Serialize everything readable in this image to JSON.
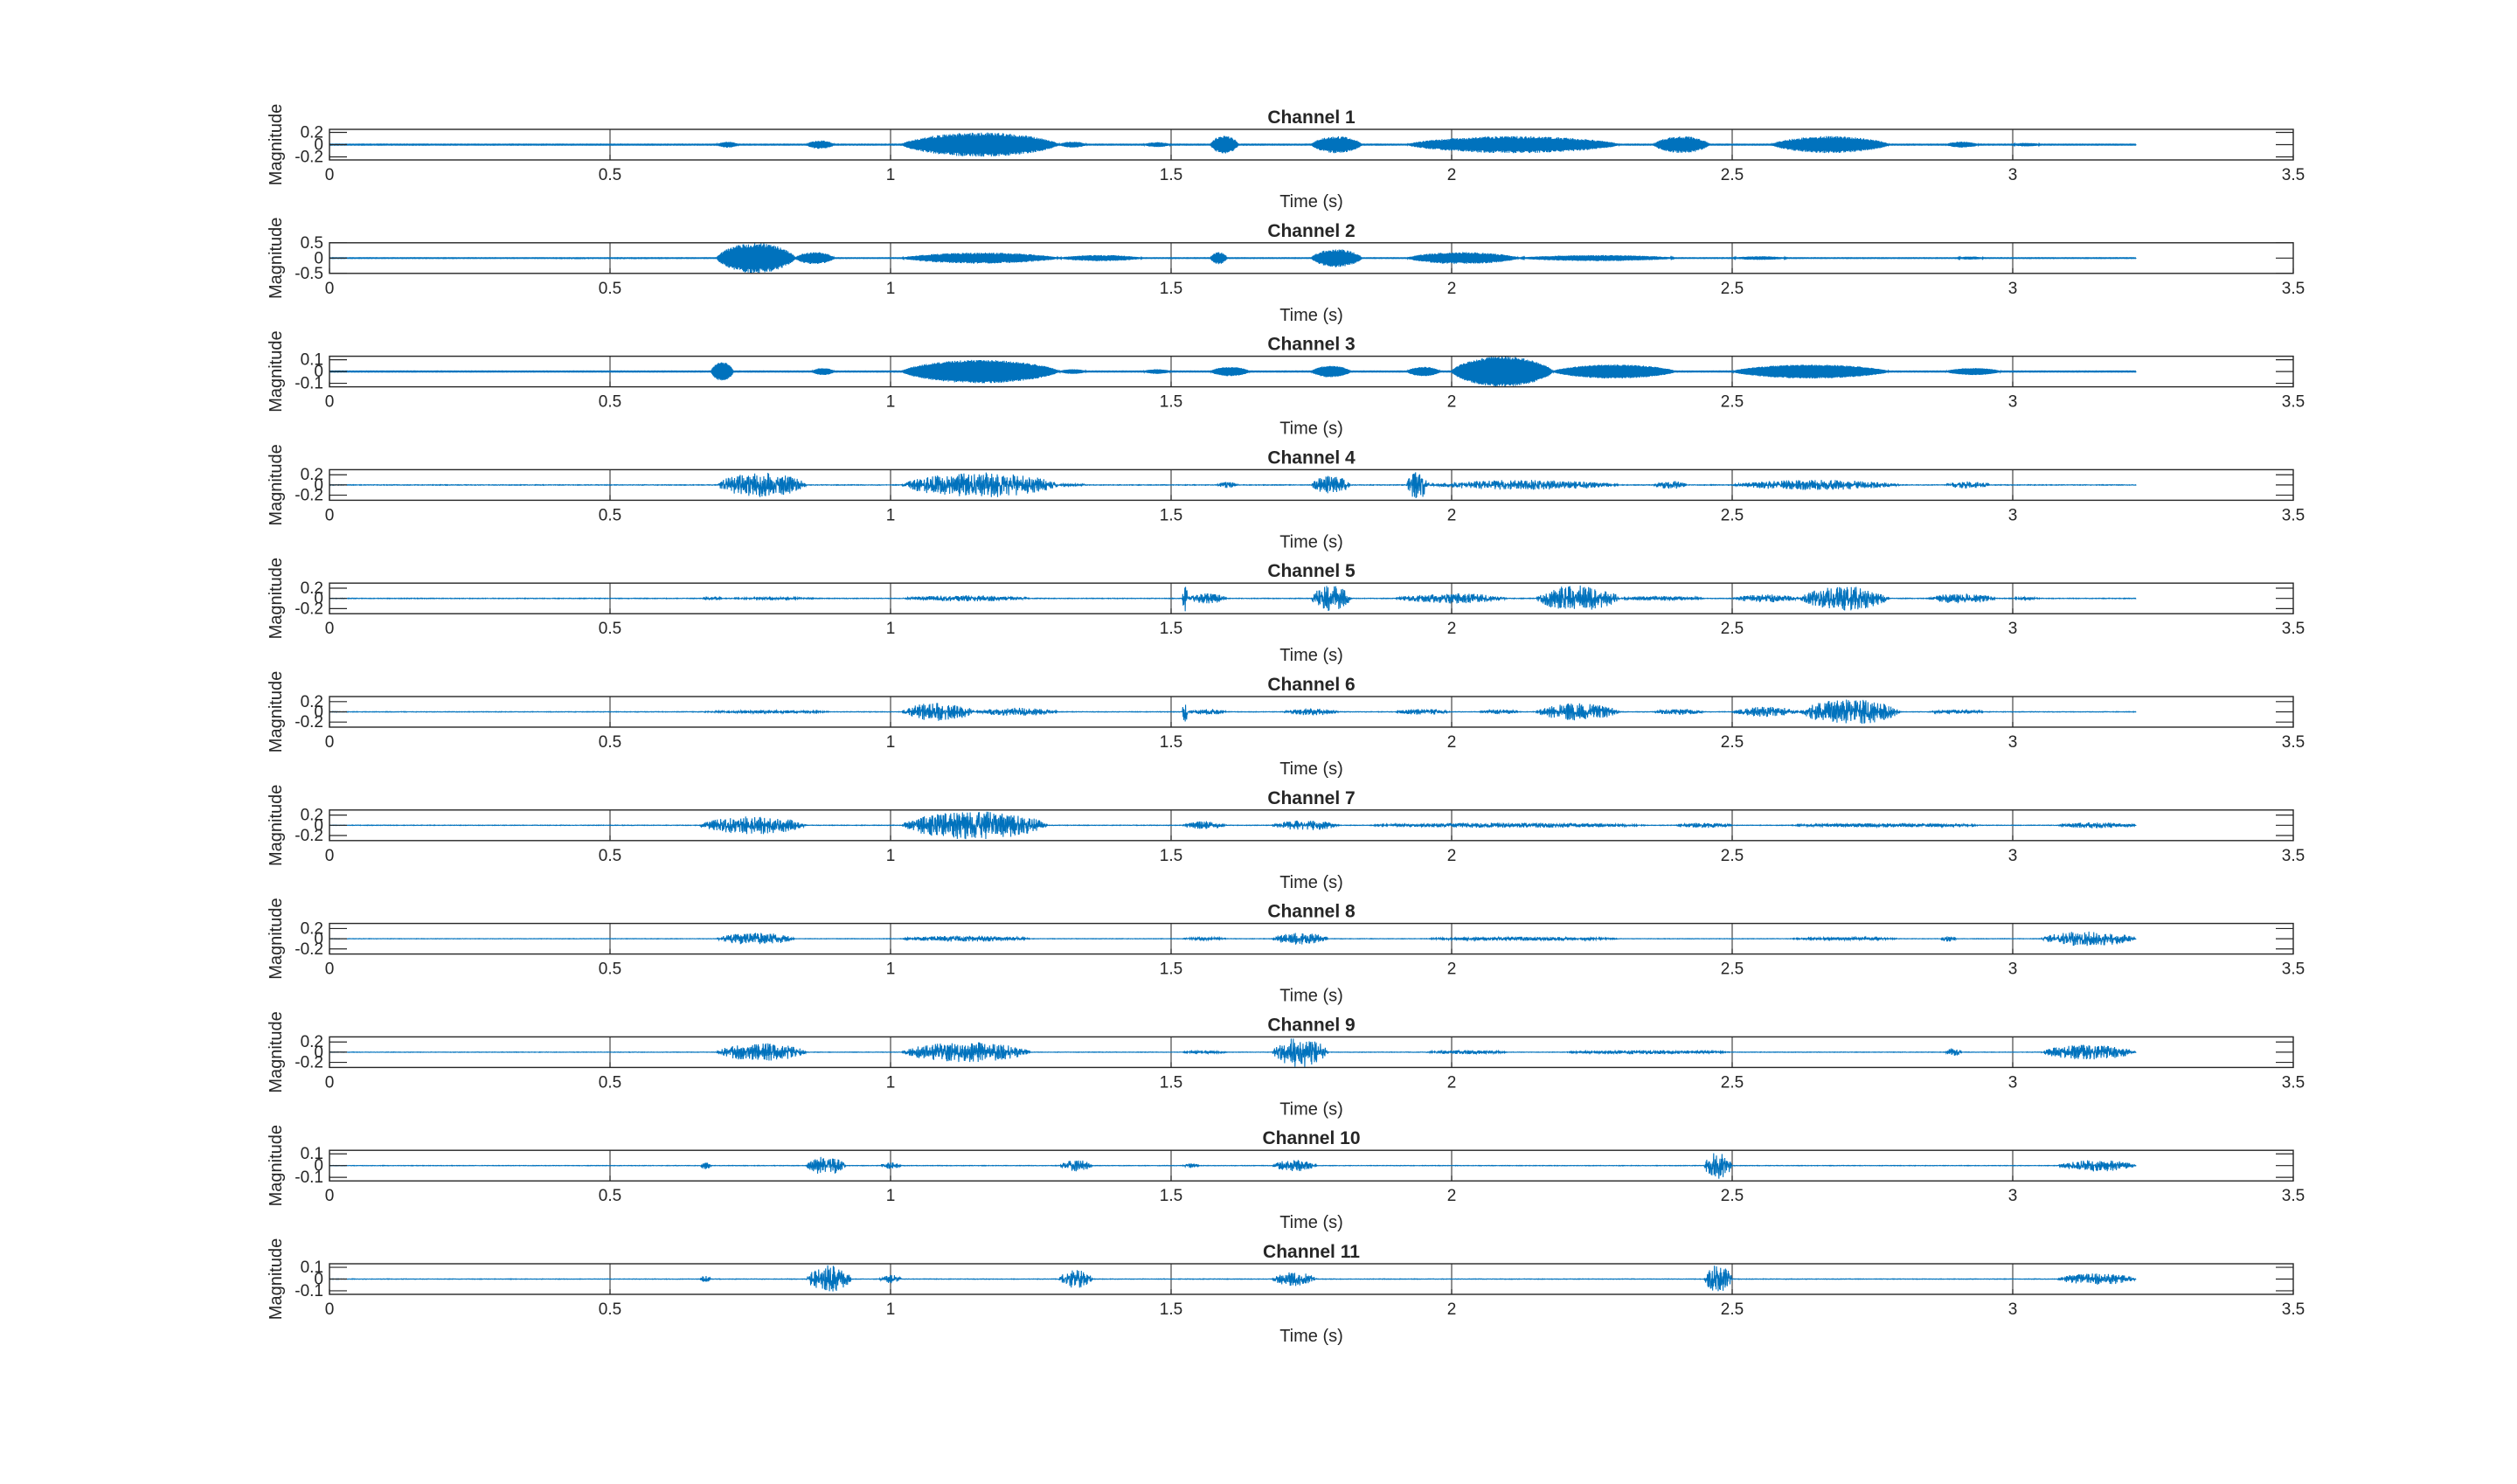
{
  "figure": {
    "background": "#ffffff",
    "trace_color": "#0072BD",
    "axis_color": "#262626",
    "grid_color": "#262626"
  },
  "chart_data": [
    {
      "type": "line",
      "title": "Channel 1",
      "xlabel": "Time (s)",
      "ylabel": "Magnitude",
      "xlim": [
        0,
        3.5
      ],
      "ylim": [
        -0.25,
        0.25
      ],
      "xticks": [
        "0",
        "0.5",
        "1",
        "1.5",
        "2",
        "2.5",
        "3",
        "3.5"
      ],
      "yticks": [
        {
          "v": 0.2,
          "t": "0.2"
        },
        {
          "v": 0,
          "t": "0"
        },
        {
          "v": -0.2,
          "t": "-0.2"
        }
      ],
      "grid": "x-major",
      "legend": "none",
      "duration": 3.22,
      "baseline": 0.006,
      "tone": 0.85,
      "bursts": [
        [
          0.69,
          0.73,
          0.05
        ],
        [
          0.85,
          0.9,
          0.07
        ],
        [
          1.02,
          1.3,
          0.2
        ],
        [
          1.3,
          1.35,
          0.05
        ],
        [
          1.45,
          1.5,
          0.04
        ],
        [
          1.57,
          1.62,
          0.15
        ],
        [
          1.75,
          1.84,
          0.14
        ],
        [
          1.92,
          2.3,
          0.14
        ],
        [
          2.36,
          2.46,
          0.14
        ],
        [
          2.57,
          2.78,
          0.14
        ],
        [
          2.88,
          2.94,
          0.05
        ],
        [
          3.0,
          3.05,
          0.03
        ]
      ]
    },
    {
      "type": "line",
      "title": "Channel 2",
      "xlabel": "Time (s)",
      "ylabel": "Magnitude",
      "xlim": [
        0,
        3.5
      ],
      "ylim": [
        -0.5,
        0.5
      ],
      "xticks": [
        "0",
        "0.5",
        "1",
        "1.5",
        "2",
        "2.5",
        "3",
        "3.5"
      ],
      "yticks": [
        {
          "v": 0.5,
          "t": "0.5"
        },
        {
          "v": 0,
          "t": "0"
        },
        {
          "v": -0.5,
          "t": "-0.5"
        }
      ],
      "grid": "x-major",
      "legend": "none",
      "duration": 3.22,
      "baseline": 0.01,
      "tone": 0.85,
      "bursts": [
        [
          0.69,
          0.83,
          0.5
        ],
        [
          0.83,
          0.9,
          0.2
        ],
        [
          1.02,
          1.3,
          0.18
        ],
        [
          1.3,
          1.45,
          0.1
        ],
        [
          1.57,
          1.6,
          0.2
        ],
        [
          1.75,
          1.84,
          0.3
        ],
        [
          1.92,
          2.12,
          0.2
        ],
        [
          2.12,
          2.4,
          0.1
        ],
        [
          2.5,
          2.6,
          0.06
        ],
        [
          2.9,
          2.95,
          0.05
        ]
      ]
    },
    {
      "type": "line",
      "title": "Channel 3",
      "xlabel": "Time (s)",
      "ylabel": "Magnitude",
      "xlim": [
        0,
        3.5
      ],
      "ylim": [
        -0.13,
        0.13
      ],
      "xticks": [
        "0",
        "0.5",
        "1",
        "1.5",
        "2",
        "2.5",
        "3",
        "3.5"
      ],
      "yticks": [
        {
          "v": 0.1,
          "t": "0.1"
        },
        {
          "v": 0,
          "t": "0"
        },
        {
          "v": -0.1,
          "t": "-0.1"
        }
      ],
      "grid": "x-major",
      "legend": "none",
      "duration": 3.22,
      "baseline": 0.003,
      "tone": 0.9,
      "bursts": [
        [
          0.68,
          0.72,
          0.08
        ],
        [
          0.86,
          0.9,
          0.03
        ],
        [
          1.02,
          1.3,
          0.1
        ],
        [
          1.3,
          1.35,
          0.02
        ],
        [
          1.45,
          1.5,
          0.02
        ],
        [
          1.57,
          1.64,
          0.04
        ],
        [
          1.75,
          1.82,
          0.05
        ],
        [
          1.92,
          1.98,
          0.04
        ],
        [
          2.0,
          2.18,
          0.13
        ],
        [
          2.18,
          2.4,
          0.06
        ],
        [
          2.5,
          2.78,
          0.06
        ],
        [
          2.88,
          2.98,
          0.03
        ]
      ]
    },
    {
      "type": "line",
      "title": "Channel 4",
      "xlabel": "Time (s)",
      "ylabel": "Magnitude",
      "xlim": [
        0,
        3.5
      ],
      "ylim": [
        -0.3,
        0.3
      ],
      "xticks": [
        "0",
        "0.5",
        "1",
        "1.5",
        "2",
        "2.5",
        "3",
        "3.5"
      ],
      "yticks": [
        {
          "v": 0.2,
          "t": "0.2"
        },
        {
          "v": 0,
          "t": "0"
        },
        {
          "v": -0.2,
          "t": "-0.2"
        }
      ],
      "grid": "x-major",
      "legend": "none",
      "duration": 3.22,
      "baseline": 0.006,
      "tone": 0.4,
      "bursts": [
        [
          0.69,
          0.85,
          0.25
        ],
        [
          1.02,
          1.3,
          0.25
        ],
        [
          1.3,
          1.35,
          0.03
        ],
        [
          1.58,
          1.62,
          0.06
        ],
        [
          1.75,
          1.82,
          0.18
        ],
        [
          1.92,
          1.96,
          0.3
        ],
        [
          1.96,
          2.3,
          0.1
        ],
        [
          2.36,
          2.42,
          0.08
        ],
        [
          2.5,
          2.8,
          0.1
        ],
        [
          2.88,
          2.96,
          0.07
        ]
      ]
    },
    {
      "type": "line",
      "title": "Channel 5",
      "xlabel": "Time (s)",
      "ylabel": "Magnitude",
      "xlim": [
        0,
        3.5
      ],
      "ylim": [
        -0.3,
        0.3
      ],
      "xticks": [
        "0",
        "0.5",
        "1",
        "1.5",
        "2",
        "2.5",
        "3",
        "3.5"
      ],
      "yticks": [
        {
          "v": 0.2,
          "t": "0.2"
        },
        {
          "v": 0,
          "t": "0"
        },
        {
          "v": -0.2,
          "t": "-0.2"
        }
      ],
      "grid": "x-major",
      "legend": "none",
      "duration": 3.22,
      "baseline": 0.006,
      "tone": 0.4,
      "bursts": [
        [
          0.66,
          0.7,
          0.04
        ],
        [
          0.7,
          0.88,
          0.02
        ],
        [
          1.02,
          1.25,
          0.06
        ],
        [
          1.52,
          1.53,
          0.28
        ],
        [
          1.53,
          1.6,
          0.1
        ],
        [
          1.75,
          1.82,
          0.26
        ],
        [
          1.9,
          2.1,
          0.1
        ],
        [
          2.15,
          2.3,
          0.26
        ],
        [
          2.3,
          2.45,
          0.05
        ],
        [
          2.5,
          2.62,
          0.08
        ],
        [
          2.62,
          2.78,
          0.24
        ],
        [
          2.85,
          2.97,
          0.1
        ],
        [
          3.0,
          3.05,
          0.03
        ]
      ]
    },
    {
      "type": "line",
      "title": "Channel 6",
      "xlabel": "Time (s)",
      "ylabel": "Magnitude",
      "xlim": [
        0,
        3.5
      ],
      "ylim": [
        -0.3,
        0.3
      ],
      "xticks": [
        "0",
        "0.5",
        "1",
        "1.5",
        "2",
        "2.5",
        "3",
        "3.5"
      ],
      "yticks": [
        {
          "v": 0.2,
          "t": "0.2"
        },
        {
          "v": 0,
          "t": "0"
        },
        {
          "v": -0.2,
          "t": "-0.2"
        }
      ],
      "grid": "x-major",
      "legend": "none",
      "duration": 3.22,
      "baseline": 0.005,
      "tone": 0.4,
      "bursts": [
        [
          0.66,
          0.9,
          0.03
        ],
        [
          1.02,
          1.15,
          0.18
        ],
        [
          1.15,
          1.3,
          0.08
        ],
        [
          1.52,
          1.53,
          0.22
        ],
        [
          1.53,
          1.6,
          0.06
        ],
        [
          1.7,
          1.8,
          0.07
        ],
        [
          1.9,
          2.0,
          0.06
        ],
        [
          2.05,
          2.12,
          0.05
        ],
        [
          2.15,
          2.3,
          0.17
        ],
        [
          2.36,
          2.45,
          0.06
        ],
        [
          2.5,
          2.62,
          0.1
        ],
        [
          2.62,
          2.8,
          0.25
        ],
        [
          2.85,
          2.95,
          0.04
        ]
      ]
    },
    {
      "type": "line",
      "title": "Channel 7",
      "xlabel": "Time (s)",
      "ylabel": "Magnitude",
      "xlim": [
        0,
        3.5
      ],
      "ylim": [
        -0.3,
        0.3
      ],
      "xticks": [
        "0",
        "0.5",
        "1",
        "1.5",
        "2",
        "2.5",
        "3",
        "3.5"
      ],
      "yticks": [
        {
          "v": 0.2,
          "t": "0.2"
        },
        {
          "v": 0,
          "t": "0"
        },
        {
          "v": -0.2,
          "t": "-0.2"
        }
      ],
      "grid": "x-major",
      "legend": "none",
      "duration": 3.22,
      "baseline": 0.005,
      "tone": 0.4,
      "bursts": [
        [
          0.66,
          0.85,
          0.18
        ],
        [
          1.02,
          1.28,
          0.28
        ],
        [
          1.52,
          1.6,
          0.08
        ],
        [
          1.68,
          1.8,
          0.1
        ],
        [
          1.85,
          2.35,
          0.05
        ],
        [
          2.4,
          2.5,
          0.05
        ],
        [
          2.6,
          2.95,
          0.04
        ],
        [
          3.08,
          3.22,
          0.06
        ]
      ]
    },
    {
      "type": "line",
      "title": "Channel 8",
      "xlabel": "Time (s)",
      "ylabel": "Magnitude",
      "xlim": [
        0,
        3.5
      ],
      "ylim": [
        -0.3,
        0.3
      ],
      "xticks": [
        "0",
        "0.5",
        "1",
        "1.5",
        "2",
        "2.5",
        "3",
        "3.5"
      ],
      "yticks": [
        {
          "v": 0.2,
          "t": "0.2"
        },
        {
          "v": 0,
          "t": "0"
        },
        {
          "v": -0.2,
          "t": "-0.2"
        }
      ],
      "grid": "x-major",
      "legend": "none",
      "duration": 3.22,
      "baseline": 0.004,
      "tone": 0.4,
      "bursts": [
        [
          0.69,
          0.83,
          0.12
        ],
        [
          1.02,
          1.25,
          0.06
        ],
        [
          1.52,
          1.6,
          0.03
        ],
        [
          1.68,
          1.78,
          0.12
        ],
        [
          1.95,
          2.3,
          0.04
        ],
        [
          2.6,
          2.8,
          0.03
        ],
        [
          2.87,
          2.9,
          0.06
        ],
        [
          3.05,
          3.22,
          0.15
        ]
      ]
    },
    {
      "type": "line",
      "title": "Channel 9",
      "xlabel": "Time (s)",
      "ylabel": "Magnitude",
      "xlim": [
        0,
        3.5
      ],
      "ylim": [
        -0.3,
        0.3
      ],
      "xticks": [
        "0",
        "0.5",
        "1",
        "1.5",
        "2",
        "2.5",
        "3",
        "3.5"
      ],
      "yticks": [
        {
          "v": 0.2,
          "t": "0.2"
        },
        {
          "v": 0,
          "t": "0"
        },
        {
          "v": -0.2,
          "t": "-0.2"
        }
      ],
      "grid": "x-major",
      "legend": "none",
      "duration": 3.22,
      "baseline": 0.004,
      "tone": 0.4,
      "bursts": [
        [
          0.69,
          0.85,
          0.18
        ],
        [
          1.02,
          1.25,
          0.2
        ],
        [
          1.52,
          1.6,
          0.03
        ],
        [
          1.68,
          1.78,
          0.3
        ],
        [
          1.95,
          2.1,
          0.04
        ],
        [
          2.2,
          2.5,
          0.04
        ],
        [
          2.88,
          2.91,
          0.08
        ],
        [
          3.05,
          3.22,
          0.15
        ]
      ]
    },
    {
      "type": "line",
      "title": "Channel 10",
      "xlabel": "Time (s)",
      "ylabel": "Magnitude",
      "xlim": [
        0,
        3.5
      ],
      "ylim": [
        -0.13,
        0.13
      ],
      "xticks": [
        "0",
        "0.5",
        "1",
        "1.5",
        "2",
        "2.5",
        "3",
        "3.5"
      ],
      "yticks": [
        {
          "v": 0.1,
          "t": "0.1"
        },
        {
          "v": 0,
          "t": "0"
        },
        {
          "v": -0.1,
          "t": "-0.1"
        }
      ],
      "grid": "x-major",
      "legend": "none",
      "duration": 3.22,
      "baseline": 0.002,
      "tone": 0.4,
      "bursts": [
        [
          0.66,
          0.68,
          0.03
        ],
        [
          0.85,
          0.92,
          0.08
        ],
        [
          0.98,
          1.02,
          0.03
        ],
        [
          1.3,
          1.36,
          0.05
        ],
        [
          1.52,
          1.55,
          0.02
        ],
        [
          1.68,
          1.76,
          0.05
        ],
        [
          2.45,
          2.5,
          0.12
        ],
        [
          3.08,
          3.22,
          0.05
        ]
      ]
    },
    {
      "type": "line",
      "title": "Channel 11",
      "xlabel": "Time (s)",
      "ylabel": "Magnitude",
      "xlim": [
        0,
        3.5
      ],
      "ylim": [
        -0.13,
        0.13
      ],
      "xticks": [
        "0",
        "0.5",
        "1",
        "1.5",
        "2",
        "2.5",
        "3",
        "3.5"
      ],
      "yticks": [
        {
          "v": 0.1,
          "t": "0.1"
        },
        {
          "v": 0,
          "t": "0"
        },
        {
          "v": -0.1,
          "t": "-0.1"
        }
      ],
      "grid": "x-major",
      "legend": "none",
      "duration": 3.22,
      "baseline": 0.002,
      "tone": 0.4,
      "bursts": [
        [
          0.66,
          0.68,
          0.03
        ],
        [
          0.85,
          0.93,
          0.12
        ],
        [
          0.98,
          1.02,
          0.04
        ],
        [
          1.3,
          1.36,
          0.08
        ],
        [
          1.68,
          1.76,
          0.06
        ],
        [
          2.45,
          2.5,
          0.12
        ],
        [
          3.08,
          3.22,
          0.05
        ]
      ]
    }
  ]
}
